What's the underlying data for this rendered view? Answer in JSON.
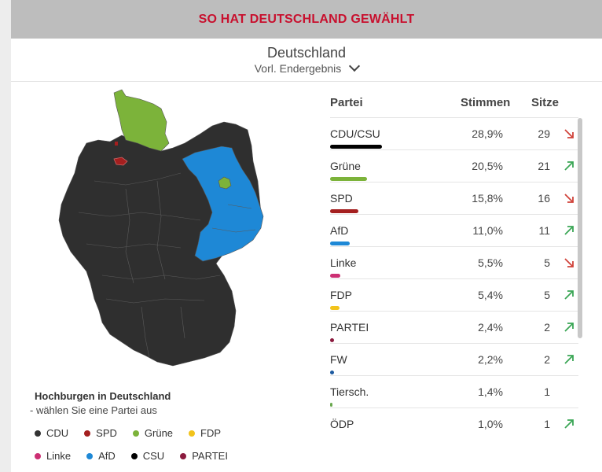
{
  "banner": {
    "title": "SO HAT DEUTSCHLAND GEWÄHLT"
  },
  "region": {
    "title": "Deutschland",
    "subtitle": "Vorl. Endergebnis"
  },
  "table": {
    "headers": {
      "party": "Partei",
      "votes": "Stimmen",
      "seats": "Sitze"
    },
    "rows": [
      {
        "name": "CDU/CSU",
        "votes": "28,9%",
        "seats": "29",
        "trend": "down",
        "color": "#000000",
        "share": 28.9
      },
      {
        "name": "Grüne",
        "votes": "20,5%",
        "seats": "21",
        "trend": "up",
        "color": "#7cb33a",
        "share": 20.5
      },
      {
        "name": "SPD",
        "votes": "15,8%",
        "seats": "16",
        "trend": "down",
        "color": "#a41f1f",
        "share": 15.8
      },
      {
        "name": "AfD",
        "votes": "11,0%",
        "seats": "11",
        "trend": "up",
        "color": "#1e88d6",
        "share": 11.0
      },
      {
        "name": "Linke",
        "votes": "5,5%",
        "seats": "5",
        "trend": "down",
        "color": "#cc2f73",
        "share": 5.5
      },
      {
        "name": "FDP",
        "votes": "5,4%",
        "seats": "5",
        "trend": "up",
        "color": "#f2c31b",
        "share": 5.4
      },
      {
        "name": "PARTEI",
        "votes": "2,4%",
        "seats": "2",
        "trend": "up",
        "color": "#8b1a3e",
        "share": 2.4
      },
      {
        "name": "FW",
        "votes": "2,2%",
        "seats": "2",
        "trend": "up",
        "color": "#1c5aa0",
        "share": 2.2
      },
      {
        "name": "Tiersch.",
        "votes": "1,4%",
        "seats": "1",
        "trend": "none",
        "color": "#6aa84f",
        "share": 1.4
      },
      {
        "name": "ÖDP",
        "votes": "1,0%",
        "seats": "1",
        "trend": "up",
        "color": "#f2a900",
        "share": 1.0
      }
    ]
  },
  "hochburgen": {
    "title": "Hochburgen in Deutschland",
    "subtitle": "- wählen Sie eine Partei aus",
    "legend": [
      {
        "label": "CDU",
        "color": "#333333"
      },
      {
        "label": "SPD",
        "color": "#a41f1f"
      },
      {
        "label": "Grüne",
        "color": "#7cb33a"
      },
      {
        "label": "FDP",
        "color": "#f2c31b"
      },
      {
        "label": "Linke",
        "color": "#cc2f73"
      },
      {
        "label": "AfD",
        "color": "#1e88d6"
      },
      {
        "label": "CSU",
        "color": "#000000"
      },
      {
        "label": "PARTEI",
        "color": "#8b1a3e"
      }
    ]
  },
  "map": {
    "colors": {
      "cdu": "#2f2f2f",
      "gruene": "#7cb33a",
      "afd": "#1e88d6",
      "spd": "#a41f1f",
      "border": "#555555"
    },
    "trend_colors": {
      "up": "#3aa655",
      "down": "#d0433a"
    }
  }
}
